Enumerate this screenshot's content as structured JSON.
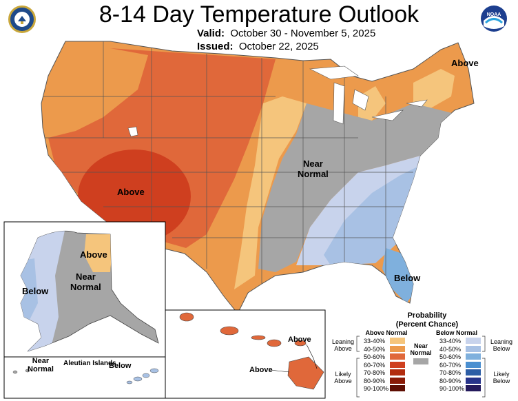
{
  "header": {
    "title": "8-14 Day Temperature Outlook",
    "valid_label": "Valid:",
    "valid_value": "October 30 - November 5, 2025",
    "issued_label": "Issued:",
    "issued_value": "October 22, 2025",
    "noaa_logo_text": "NOAA"
  },
  "labels": {
    "above_ne": "Above",
    "above_sw": "Above",
    "near_normal_line1": "Near",
    "near_normal_line2": "Normal",
    "below_se": "Below",
    "ak_above": "Above",
    "ak_below": "Below",
    "ak_near_line1": "Near",
    "ak_near_line2": "Normal",
    "aleutian_near_line1": "Near",
    "aleutian_near_line2": "Normal",
    "aleutian_islands": "Aleutian Islands",
    "aleutian_below": "Below",
    "hi_above_1": "Above",
    "hi_above_2": "Above"
  },
  "legend": {
    "title_line1": "Probability",
    "title_line2": "(Percent Chance)",
    "above_header": "Above Normal",
    "below_header": "Below Normal",
    "near_header_line1": "Near",
    "near_header_line2": "Normal",
    "leaning_above_1": "Leaning",
    "leaning_above_2": "Above",
    "likely_above_1": "Likely",
    "likely_above_2": "Above",
    "leaning_below_1": "Leaning",
    "leaning_below_2": "Below",
    "likely_below_1": "Likely",
    "likely_below_2": "Below",
    "ranges": [
      "33-40%",
      "40-50%",
      "50-60%",
      "60-70%",
      "70-80%",
      "80-90%",
      "90-100%"
    ],
    "above_colors": [
      "#f5c57c",
      "#ec9a4c",
      "#e0683a",
      "#cf3f1f",
      "#b22c0e",
      "#8a1a06",
      "#5e0e03"
    ],
    "below_colors": [
      "#c8d3ec",
      "#a8c1e4",
      "#7fb0dd",
      "#4a8fd0",
      "#2d5ea6",
      "#27348b",
      "#241a5c"
    ],
    "near_color": "#a6a6a6"
  }
}
